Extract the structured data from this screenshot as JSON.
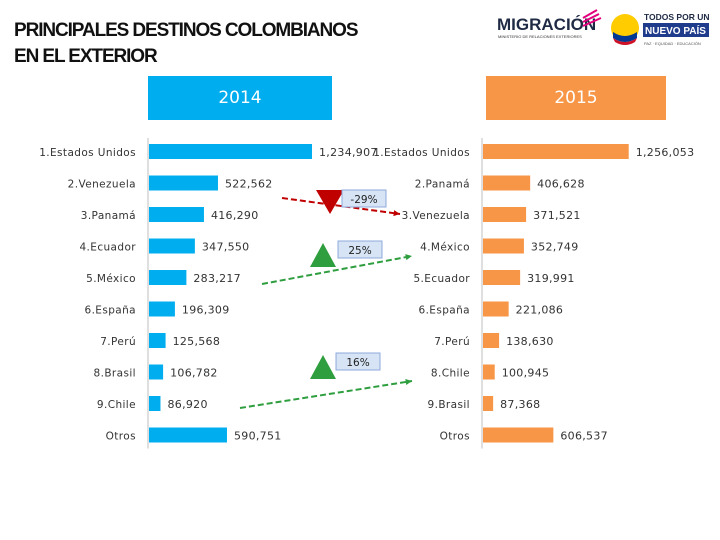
{
  "title": {
    "line1": "PRINCIPALES DESTINOS COLOMBIANOS",
    "line2": "EN EL EXTERIOR"
  },
  "logos": {
    "migracion": "MIGRACIÓN",
    "migracion_sub": "MINISTERIO DE RELACIONES EXTERIORES",
    "gov_line1": "TODOS POR UN",
    "gov_line2": "NUEVO PAÍS",
    "gov_line3": "PAZ · EQUIDAD · EDUCACIÓN"
  },
  "colors": {
    "bar_2014": "#00aeef",
    "bar_2015": "#f79646",
    "down": "#c00000",
    "up": "#2e9e3f",
    "badge": "#d6e4f5"
  },
  "chart_data": [
    {
      "type": "bar",
      "orientation": "horizontal",
      "title": "2014",
      "categories": [
        "1.Estados Unidos",
        "2.Venezuela",
        "3.Panamá",
        "4.Ecuador",
        "5.México",
        "6.España",
        "7.Perú",
        "8.Brasil",
        "9.Chile",
        "Otros"
      ],
      "values": [
        1234907,
        522562,
        416290,
        347550,
        283217,
        196309,
        125568,
        106782,
        86920,
        590751
      ],
      "value_labels": [
        "1,234,907",
        "522,562",
        "416,290",
        "347,550",
        "283,217",
        "196,309",
        "125,568",
        "106,782",
        "86,920",
        "590,751"
      ],
      "color": "#00aeef"
    },
    {
      "type": "bar",
      "orientation": "horizontal",
      "title": "2015",
      "categories": [
        "1.Estados Unidos",
        "2.Panamá",
        "3.Venezuela",
        "4.México",
        "5.Ecuador",
        "6.España",
        "7.Perú",
        "8.Chile",
        "9.Brasil",
        "Otros"
      ],
      "values": [
        1256053,
        406628,
        371521,
        352749,
        319991,
        221086,
        138630,
        100945,
        87368,
        606537
      ],
      "value_labels": [
        "1,256,053",
        "406,628",
        "371,521",
        "352,749",
        "319,991",
        "221,086",
        "138,630",
        "100,945",
        "87,368",
        "606,537"
      ],
      "color": "#f79646"
    }
  ],
  "annotations": [
    {
      "label": "-29%",
      "direction": "down",
      "from": "2.Venezuela",
      "to": "3.Venezuela"
    },
    {
      "label": "25%",
      "direction": "up",
      "from": "5.México",
      "to": "4.México"
    },
    {
      "label": "16%",
      "direction": "up",
      "from": "9.Chile",
      "to": "8.Chile"
    }
  ]
}
